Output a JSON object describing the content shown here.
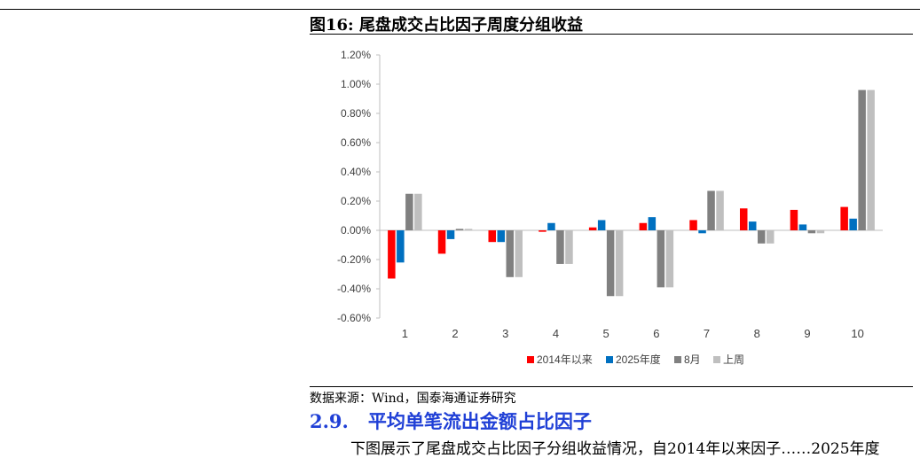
{
  "figure": {
    "title": "图16:  尾盘成交占比因子周度分组收益",
    "source": "数据来源：Wind，国泰海通证券研究"
  },
  "section": {
    "number": "2.9.",
    "title": "平均单笔流出金额占比因子"
  },
  "body_text": "下图展示了尾盘成交占比因子分组收益情况，自2014年以来因子……2025年度",
  "chart_data": {
    "type": "bar",
    "categories": [
      "1",
      "2",
      "3",
      "4",
      "5",
      "6",
      "7",
      "8",
      "9",
      "10"
    ],
    "y_unit": "%",
    "ylim": [
      -0.6,
      1.2
    ],
    "yticks": [
      "1.20%",
      "1.00%",
      "0.80%",
      "0.60%",
      "0.40%",
      "0.20%",
      "0.00%",
      "-0.20%",
      "-0.40%",
      "-0.60%"
    ],
    "ytick_values": [
      1.2,
      1.0,
      0.8,
      0.6,
      0.4,
      0.2,
      0.0,
      -0.2,
      -0.4,
      -0.6
    ],
    "grid": false,
    "legend_position": "bottom",
    "series": [
      {
        "name": "2014年以来",
        "color": "#ff0000",
        "values": [
          -0.33,
          -0.16,
          -0.08,
          -0.01,
          0.02,
          0.05,
          0.07,
          0.15,
          0.14,
          0.16
        ]
      },
      {
        "name": "2025年度",
        "color": "#0070c0",
        "values": [
          -0.22,
          -0.06,
          -0.08,
          0.05,
          0.07,
          0.09,
          -0.02,
          0.06,
          0.04,
          0.08
        ]
      },
      {
        "name": "8月",
        "color": "#808080",
        "values": [
          0.25,
          0.01,
          -0.32,
          -0.23,
          -0.45,
          -0.39,
          0.27,
          -0.09,
          -0.02,
          0.96
        ]
      },
      {
        "name": "上周",
        "color": "#bfbfbf",
        "values": [
          0.25,
          0.01,
          -0.32,
          -0.23,
          -0.45,
          -0.39,
          0.27,
          -0.09,
          -0.02,
          0.96
        ]
      }
    ]
  }
}
